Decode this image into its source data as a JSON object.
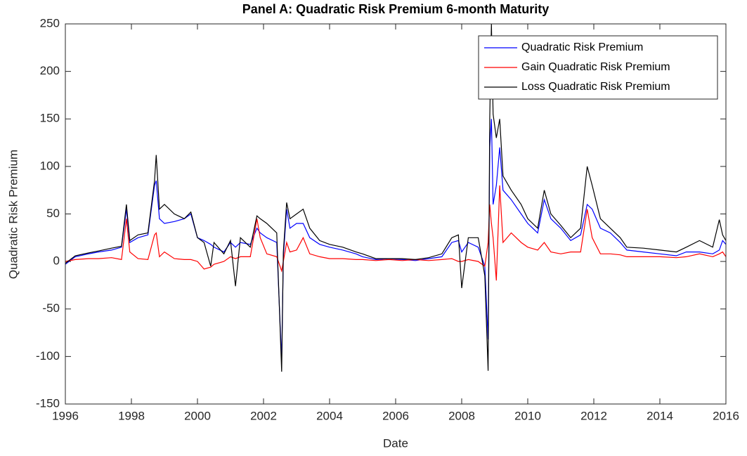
{
  "chart_data": {
    "type": "line",
    "title": "Panel A: Quadratic Risk Premium 6-month Maturity",
    "x_label": "Date",
    "y_label": "Quadratic Risk Premium",
    "x": [
      1996.0,
      1996.3,
      1996.7,
      1997.0,
      1997.4,
      1997.7,
      1997.85,
      1997.95,
      1998.2,
      1998.5,
      1998.7,
      1998.75,
      1998.85,
      1999.0,
      1999.3,
      1999.6,
      1999.8,
      2000.0,
      2000.2,
      2000.4,
      2000.5,
      2000.8,
      2001.0,
      2001.15,
      2001.3,
      2001.6,
      2001.8,
      2001.9,
      2002.1,
      2002.4,
      2002.55,
      2002.6,
      2002.7,
      2002.8,
      2003.0,
      2003.2,
      2003.4,
      2003.7,
      2004.0,
      2004.4,
      2004.8,
      2005.0,
      2005.4,
      2005.8,
      2006.2,
      2006.6,
      2007.0,
      2007.4,
      2007.7,
      2007.9,
      2008.0,
      2008.2,
      2008.5,
      2008.7,
      2008.8,
      2008.85,
      2008.9,
      2008.95,
      2009.05,
      2009.15,
      2009.25,
      2009.5,
      2009.8,
      2010.0,
      2010.3,
      2010.5,
      2010.7,
      2011.0,
      2011.3,
      2011.6,
      2011.8,
      2011.95,
      2012.2,
      2012.5,
      2012.8,
      2013.0,
      2013.5,
      2014.0,
      2014.5,
      2014.8,
      2015.2,
      2015.6,
      2015.8,
      2015.9,
      2016.0
    ],
    "series": [
      {
        "name": "Quadratic Risk Premium",
        "color": "#0000ff",
        "values": [
          -3,
          5,
          8,
          10,
          12,
          15,
          55,
          20,
          25,
          28,
          80,
          85,
          45,
          40,
          42,
          45,
          50,
          25,
          22,
          18,
          15,
          10,
          20,
          15,
          20,
          18,
          35,
          30,
          25,
          20,
          -105,
          5,
          55,
          35,
          40,
          40,
          25,
          18,
          15,
          12,
          8,
          5,
          2,
          3,
          2,
          1,
          3,
          5,
          20,
          22,
          10,
          20,
          15,
          -5,
          -82,
          120,
          150,
          60,
          80,
          120,
          75,
          65,
          50,
          40,
          30,
          65,
          45,
          35,
          22,
          28,
          60,
          55,
          35,
          30,
          20,
          12,
          10,
          8,
          6,
          10,
          10,
          8,
          12,
          22,
          18
        ]
      },
      {
        "name": "Gain Quadratic Risk Premium",
        "color": "#ff0000",
        "values": [
          0,
          2,
          3,
          3,
          4,
          2,
          45,
          10,
          3,
          2,
          28,
          30,
          5,
          10,
          3,
          2,
          2,
          0,
          -8,
          -6,
          -3,
          0,
          5,
          3,
          5,
          5,
          45,
          25,
          8,
          5,
          -10,
          0,
          20,
          10,
          12,
          25,
          8,
          5,
          3,
          3,
          2,
          2,
          1,
          2,
          1,
          2,
          1,
          2,
          3,
          0,
          0,
          2,
          0,
          -5,
          20,
          60,
          40,
          25,
          -20,
          80,
          20,
          30,
          20,
          15,
          12,
          20,
          10,
          8,
          10,
          10,
          55,
          25,
          8,
          8,
          7,
          5,
          5,
          5,
          4,
          5,
          8,
          5,
          8,
          10,
          5
        ]
      },
      {
        "name": "Loss Quadratic Risk Premium",
        "color": "#000000",
        "values": [
          -2,
          6,
          9,
          11,
          14,
          16,
          60,
          22,
          28,
          30,
          85,
          112,
          55,
          60,
          50,
          45,
          52,
          25,
          20,
          -5,
          20,
          8,
          22,
          -26,
          25,
          15,
          48,
          45,
          40,
          30,
          -116,
          10,
          62,
          45,
          50,
          55,
          35,
          22,
          18,
          15,
          10,
          8,
          3,
          3,
          3,
          2,
          4,
          8,
          25,
          28,
          -28,
          25,
          25,
          -15,
          -115,
          150,
          250,
          155,
          130,
          150,
          90,
          75,
          60,
          45,
          35,
          75,
          50,
          38,
          25,
          35,
          100,
          80,
          45,
          35,
          25,
          15,
          14,
          12,
          10,
          15,
          22,
          15,
          44,
          28,
          22
        ]
      }
    ],
    "xlim": [
      1996,
      2016
    ],
    "xticks": [
      1996,
      1998,
      2000,
      2002,
      2004,
      2006,
      2008,
      2010,
      2012,
      2014,
      2016
    ],
    "ylim": [
      -150,
      250
    ],
    "yticks": [
      -150,
      -100,
      -50,
      0,
      50,
      100,
      150,
      200,
      250
    ],
    "legend": "northeast",
    "grid": false
  }
}
